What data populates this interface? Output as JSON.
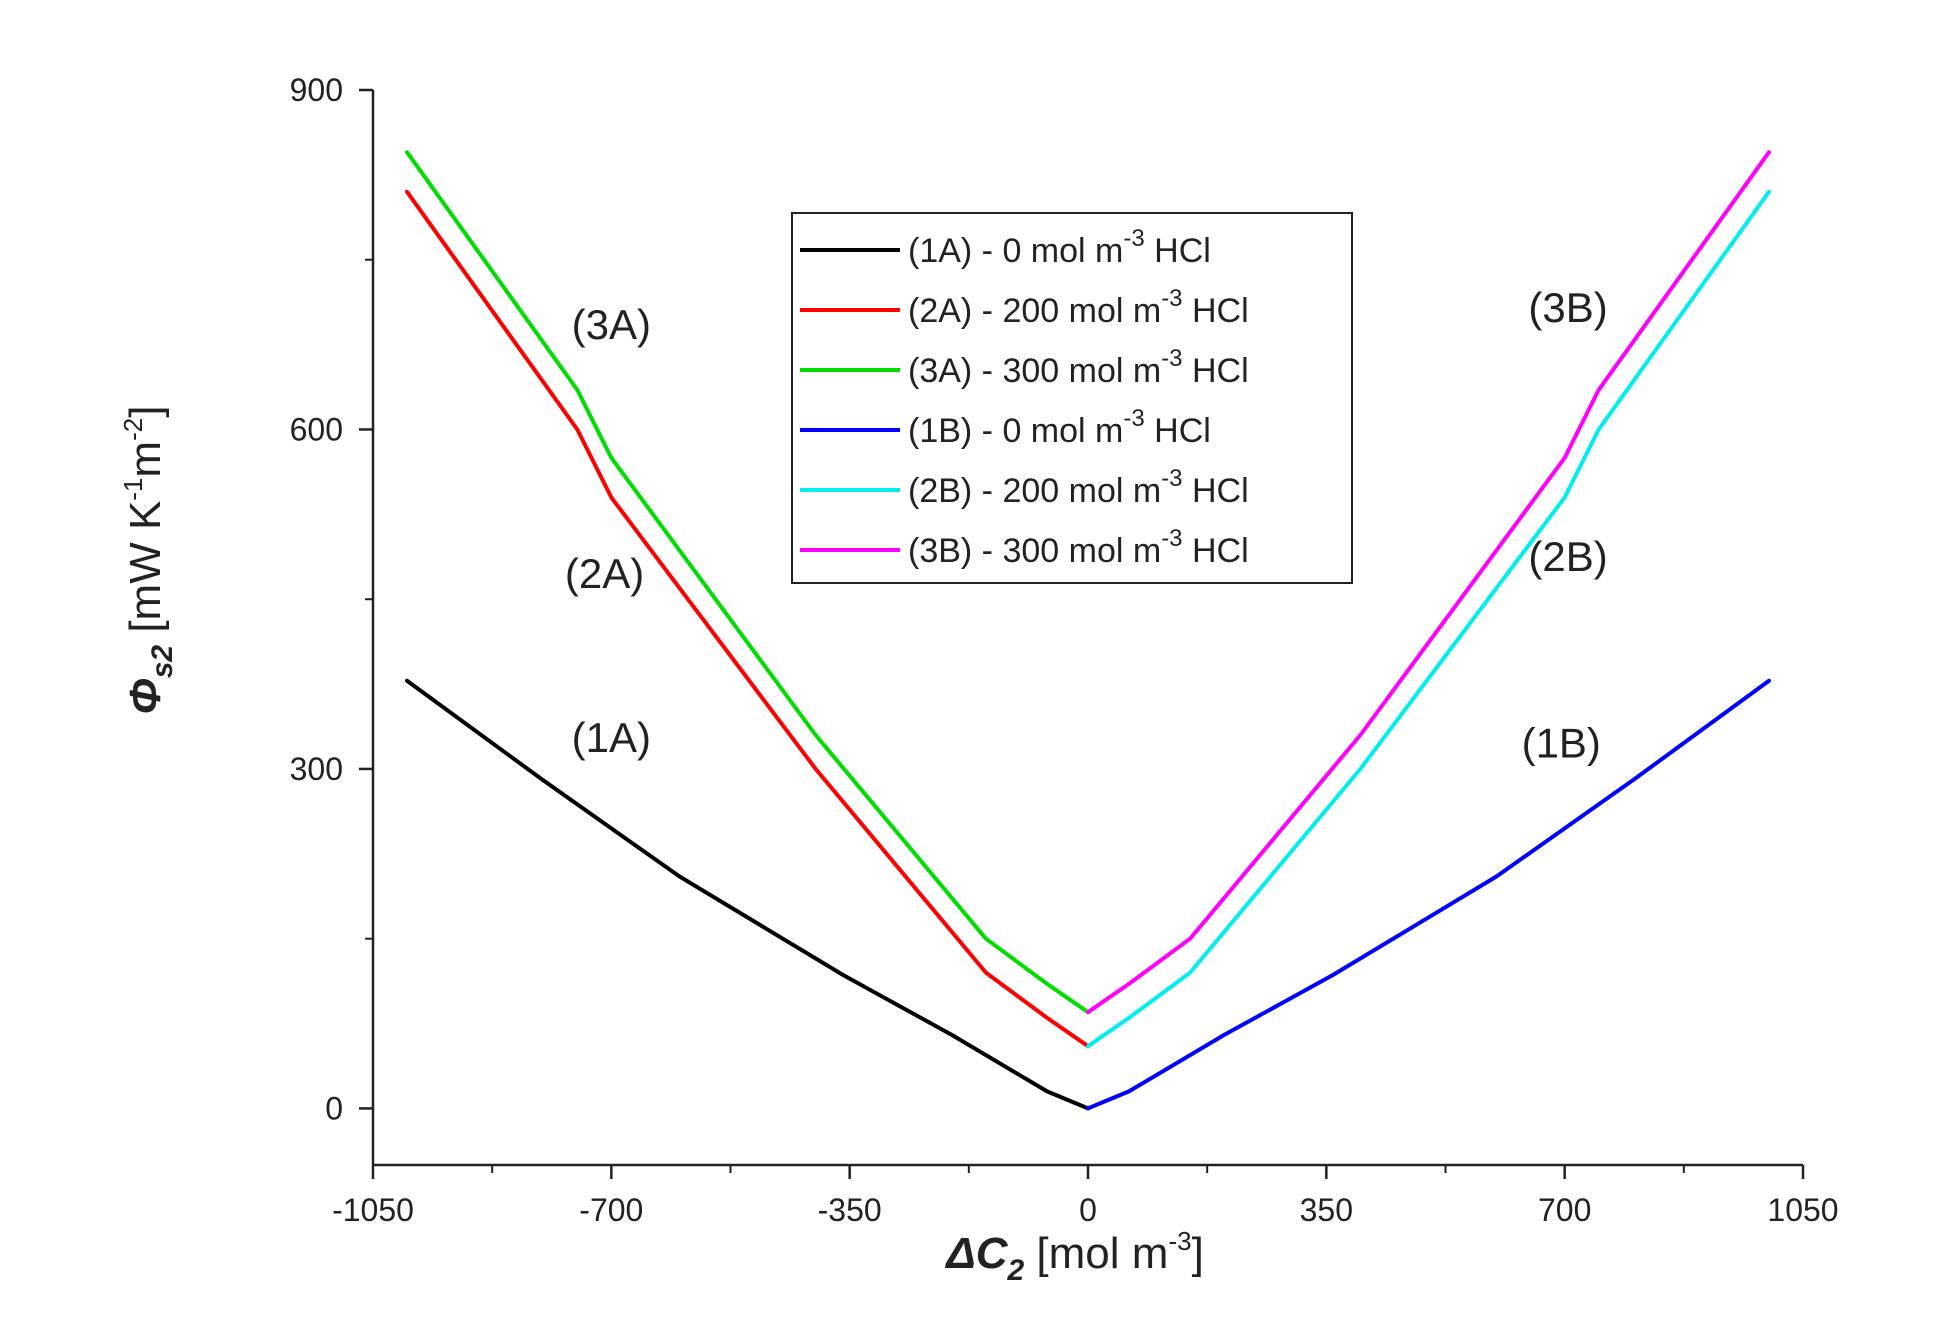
{
  "chart_data": {
    "type": "line",
    "title": "",
    "xlabel": {
      "symbol": "ΔC",
      "sub": "2",
      "units_pre": " [mol m",
      "units_sup": "-3",
      "units_post": "]"
    },
    "ylabel": {
      "symbol": "Φ",
      "sub": "s2",
      "units_pre": " [mW K",
      "units_sup1": "-1",
      "units_mid": "m",
      "units_sup2": "-2",
      "units_post": "]"
    },
    "xlim": [
      -1050,
      1050
    ],
    "ylim": [
      -50,
      900
    ],
    "x_ticks": [
      -1050,
      -700,
      -350,
      0,
      350,
      700,
      1050
    ],
    "x_tick_labels": [
      "-1050",
      "-700",
      "-350",
      "0",
      "350",
      "700",
      "1050"
    ],
    "x_minor_ticks": [
      -875,
      -525,
      -175,
      175,
      525,
      875
    ],
    "y_ticks": [
      0,
      300,
      600,
      900
    ],
    "y_tick_labels": [
      "0",
      "300",
      "600",
      "900"
    ],
    "y_minor_ticks": [
      150,
      450,
      750
    ],
    "legend_position": "top-center",
    "series": [
      {
        "name": "(1A)",
        "legend": "(1A) - 0 mol m",
        "legend_sup": "-3",
        "legend_post": " HCl",
        "color": "#000000",
        "x": [
          -1000,
          -800,
          -600,
          -360,
          -200,
          -60,
          0
        ],
        "y": [
          378,
          290,
          205,
          118,
          65,
          15,
          0
        ]
      },
      {
        "name": "(2A)",
        "legend": "(2A) - 200 mol m",
        "legend_sup": "-3",
        "legend_post": " HCl",
        "color": "#ff0000",
        "x": [
          -1000,
          -750,
          -700,
          -400,
          -150,
          -60,
          0
        ],
        "y": [
          810,
          600,
          540,
          300,
          120,
          80,
          55
        ]
      },
      {
        "name": "(3A)",
        "legend": "(3A) - 300 mol m",
        "legend_sup": "-3",
        "legend_post": " HCl",
        "color": "#00dd00",
        "x": [
          -1000,
          -750,
          -700,
          -400,
          -150,
          -60,
          0
        ],
        "y": [
          845,
          635,
          575,
          330,
          150,
          110,
          85
        ]
      },
      {
        "name": "(1B)",
        "legend": "(1B) - 0 mol m",
        "legend_sup": "-3",
        "legend_post": " HCl",
        "color": "#0000ff",
        "x": [
          0,
          60,
          200,
          360,
          600,
          800,
          1000
        ],
        "y": [
          0,
          15,
          65,
          118,
          205,
          290,
          378
        ]
      },
      {
        "name": "(2B)",
        "legend": "(2B) - 200 mol m",
        "legend_sup": "-3",
        "legend_post": " HCl",
        "color": "#00eeee",
        "x": [
          0,
          60,
          150,
          400,
          700,
          750,
          1000
        ],
        "y": [
          55,
          80,
          120,
          300,
          540,
          600,
          810
        ]
      },
      {
        "name": "(3B)",
        "legend": "(3B) - 300 mol m",
        "legend_sup": "-3",
        "legend_post": " HCl",
        "color": "#ff00ff",
        "x": [
          0,
          60,
          150,
          400,
          700,
          750,
          1000
        ],
        "y": [
          85,
          110,
          150,
          330,
          575,
          635,
          845
        ]
      }
    ],
    "annotations": [
      {
        "text": "(3A)",
        "x": -700,
        "y": 680
      },
      {
        "text": "(2A)",
        "x": -710,
        "y": 460
      },
      {
        "text": "(1A)",
        "x": -700,
        "y": 315
      },
      {
        "text": "(3B)",
        "x": 705,
        "y": 695
      },
      {
        "text": "(2B)",
        "x": 705,
        "y": 475
      },
      {
        "text": "(1B)",
        "x": 695,
        "y": 310
      }
    ]
  }
}
